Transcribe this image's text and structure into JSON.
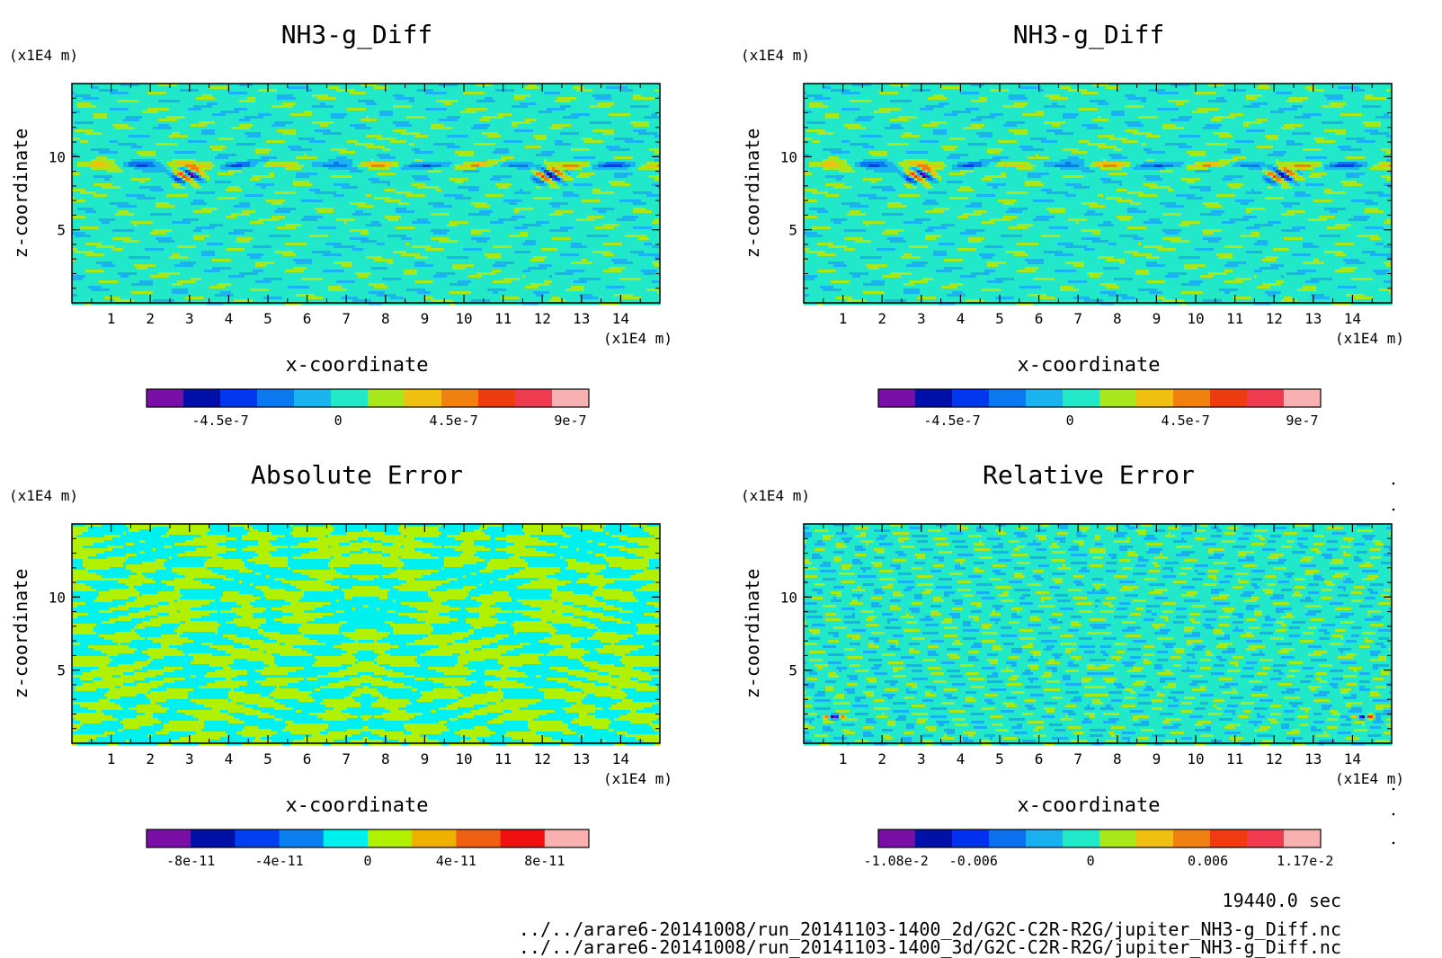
{
  "time_label": "19440.0 sec",
  "files": [
    "../../arare6-20141008/run_20141103-1400_2d/G2C-C2R-R2G/jupiter_NH3-g_Diff.nc",
    "../../arare6-20141008/run_20141103-1400_3d/G2C-C2R-R2G/jupiter_NH3-g_Diff.nc"
  ],
  "palettes": {
    "diff": [
      "#7a0fa8",
      "#0010a8",
      "#0038f0",
      "#0a78f0",
      "#1bb2f0",
      "#20e8c8",
      "#a8e81a",
      "#f0c010",
      "#f08010",
      "#f03a10",
      "#f03a50",
      "#f8b0b0"
    ],
    "abs": [
      "#7a0fa8",
      "#0010a8",
      "#0040f0",
      "#0a80f0",
      "#00f0f0",
      "#b0f000",
      "#f0b000",
      "#f06010",
      "#f01010",
      "#f8b0b0"
    ],
    "rel": [
      "#7a0fa8",
      "#0010a8",
      "#0030f0",
      "#0a70f0",
      "#18b0f0",
      "#20e8c8",
      "#a8e81a",
      "#f0c010",
      "#f08010",
      "#f03a10",
      "#f03a50",
      "#f8b0b0"
    ]
  },
  "chart_data": [
    {
      "type": "heatmap",
      "title": "NH3-g_Diff",
      "xlabel": "x-coordinate",
      "ylabel": "z-coordinate",
      "xunit": "(x1E4 m)",
      "yunit": "(x1E4 m)",
      "xlim": [
        0,
        15
      ],
      "ylim": [
        0,
        15
      ],
      "xticks": [
        "1",
        "2",
        "3",
        "4",
        "5",
        "6",
        "7",
        "8",
        "9",
        "10",
        "11",
        "12",
        "13",
        "14"
      ],
      "yticks": [
        "5",
        "10"
      ],
      "field": "diff",
      "palette": "diff",
      "colorbar_labels": [
        {
          "text": "-4.5e-7",
          "pos": 0.1667
        },
        {
          "text": "0",
          "pos": 0.4333
        },
        {
          "text": "4.5e-7",
          "pos": 0.6944
        },
        {
          "text": "9e-7",
          "pos": 0.9583
        }
      ]
    },
    {
      "type": "heatmap",
      "title": "NH3-g_Diff",
      "xlabel": "x-coordinate",
      "ylabel": "z-coordinate",
      "xunit": "(x1E4 m)",
      "yunit": "(x1E4 m)",
      "xlim": [
        0,
        15
      ],
      "ylim": [
        0,
        15
      ],
      "xticks": [
        "1",
        "2",
        "3",
        "4",
        "5",
        "6",
        "7",
        "8",
        "9",
        "10",
        "11",
        "12",
        "13",
        "14"
      ],
      "yticks": [
        "5",
        "10"
      ],
      "field": "diff",
      "palette": "diff",
      "colorbar_labels": [
        {
          "text": "-4.5e-7",
          "pos": 0.1667
        },
        {
          "text": "0",
          "pos": 0.4333
        },
        {
          "text": "4.5e-7",
          "pos": 0.6944
        },
        {
          "text": "9e-7",
          "pos": 0.9583
        }
      ]
    },
    {
      "type": "heatmap",
      "title": "Absolute Error",
      "xlabel": "x-coordinate",
      "ylabel": "z-coordinate",
      "xunit": "(x1E4 m)",
      "yunit": "(x1E4 m)",
      "xlim": [
        0,
        15
      ],
      "ylim": [
        0,
        15
      ],
      "xticks": [
        "1",
        "2",
        "3",
        "4",
        "5",
        "6",
        "7",
        "8",
        "9",
        "10",
        "11",
        "12",
        "13",
        "14"
      ],
      "yticks": [
        "5",
        "10"
      ],
      "field": "abs",
      "palette": "abs",
      "colorbar_labels": [
        {
          "text": "-8e-11",
          "pos": 0.1
        },
        {
          "text": "-4e-11",
          "pos": 0.3
        },
        {
          "text": "0",
          "pos": 0.5
        },
        {
          "text": "4e-11",
          "pos": 0.7
        },
        {
          "text": "8e-11",
          "pos": 0.9
        }
      ]
    },
    {
      "type": "heatmap",
      "title": "Relative Error",
      "xlabel": "x-coordinate",
      "ylabel": "z-coordinate",
      "xunit": "(x1E4 m)",
      "yunit": "(x1E4 m)",
      "xlim": [
        0,
        15
      ],
      "ylim": [
        0,
        15
      ],
      "xticks": [
        "1",
        "2",
        "3",
        "4",
        "5",
        "6",
        "7",
        "8",
        "9",
        "10",
        "11",
        "12",
        "13",
        "14"
      ],
      "yticks": [
        "5",
        "10"
      ],
      "field": "rel",
      "palette": "rel",
      "colorbar_labels": [
        {
          "text": "-1.08e-2",
          "pos": 0.04
        },
        {
          "text": "-0.006",
          "pos": 0.215
        },
        {
          "text": "0",
          "pos": 0.48
        },
        {
          "text": "0.006",
          "pos": 0.745
        },
        {
          "text": "1.17e-2",
          "pos": 0.965
        }
      ]
    }
  ]
}
